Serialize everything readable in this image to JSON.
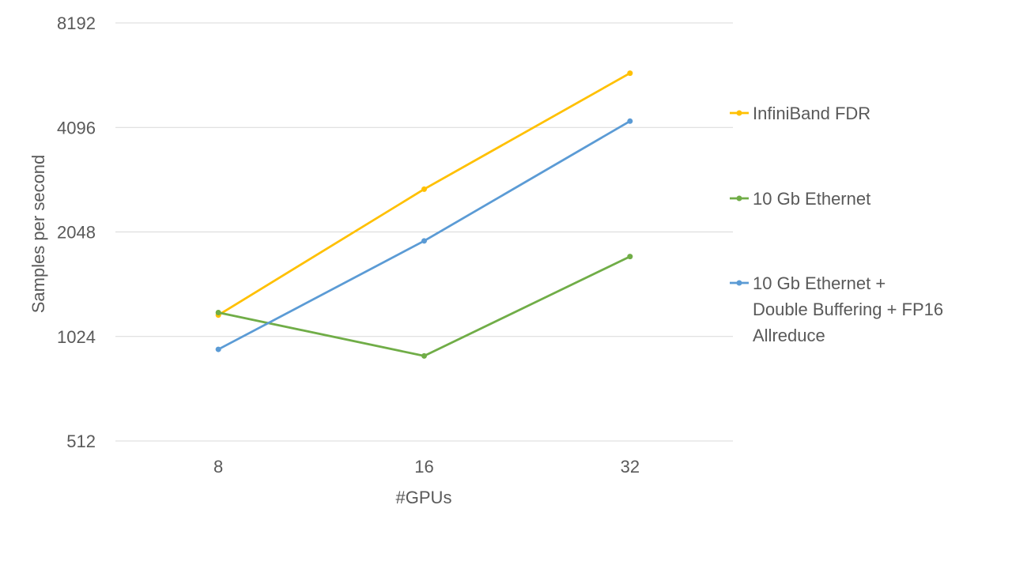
{
  "chart_data": {
    "type": "line",
    "title": "",
    "xlabel": "#GPUs",
    "ylabel": "Samples per second",
    "y_scale": "log2",
    "ylim": [
      512,
      8192
    ],
    "y_ticks": [
      "512",
      "1024",
      "2048",
      "4096",
      "8192"
    ],
    "categories": [
      "8",
      "16",
      "32"
    ],
    "grid": true,
    "legend_position": "right",
    "series": [
      {
        "name": "InfiniBand FDR",
        "color": "#FFC000",
        "values": [
          1180,
          2720,
          5870
        ]
      },
      {
        "name": "10 Gb Ethernet",
        "color": "#70AD47",
        "values": [
          1200,
          900,
          1740
        ]
      },
      {
        "name": "10 Gb Ethernet + Double Buffering + FP16 Allreduce",
        "color": "#5B9BD5",
        "values": [
          940,
          1930,
          4270
        ]
      }
    ]
  },
  "legend": {
    "items": [
      {
        "lines": [
          "InfiniBand FDR"
        ]
      },
      {
        "lines": [
          "10 Gb Ethernet"
        ]
      },
      {
        "lines": [
          "10 Gb Ethernet +",
          "Double Buffering + FP16",
          "Allreduce"
        ]
      }
    ]
  }
}
